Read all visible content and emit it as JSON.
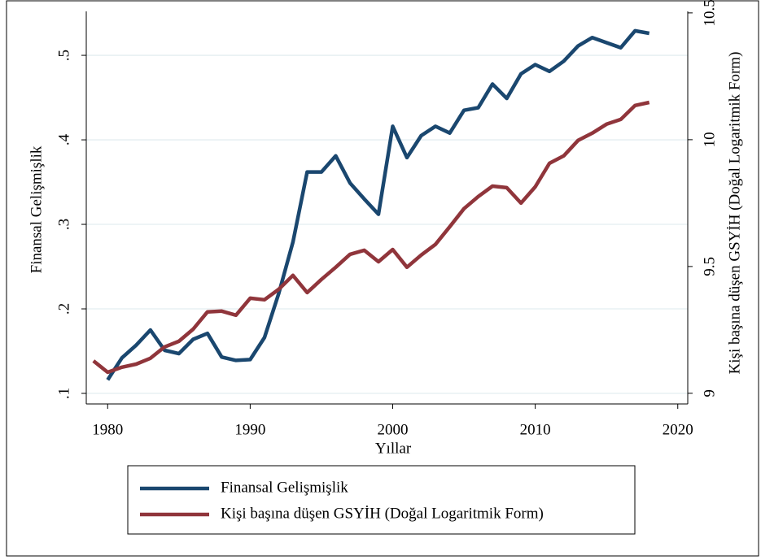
{
  "chart_data": {
    "type": "line",
    "xlabel": "Yıllar",
    "ylabel": "Finansal Gelişmişlik",
    "y2label": "Kişi başına düşen GSYİH (Doğal Logaritmik Form)",
    "x": [
      1979,
      1980,
      1981,
      1982,
      1983,
      1984,
      1985,
      1986,
      1987,
      1988,
      1989,
      1990,
      1991,
      1992,
      1993,
      1994,
      1995,
      1996,
      1997,
      1998,
      1999,
      2000,
      2001,
      2002,
      2003,
      2004,
      2005,
      2006,
      2007,
      2008,
      2009,
      2010,
      2011,
      2012,
      2013,
      2014,
      2015,
      2016,
      2017,
      2018
    ],
    "series": [
      {
        "name": "Finansal Gelişmişlik",
        "color": "#1a476f",
        "values": [
          null,
          0.116,
          0.142,
          0.157,
          0.175,
          0.151,
          0.147,
          0.164,
          0.171,
          0.143,
          0.139,
          0.14,
          0.166,
          0.218,
          0.279,
          0.362,
          0.362,
          0.381,
          0.349,
          0.33,
          0.312,
          0.416,
          0.379,
          0.405,
          0.416,
          0.408,
          0.435,
          0.438,
          0.466,
          0.449,
          0.478,
          0.489,
          0.481,
          0.493,
          0.511,
          0.521,
          0.515,
          0.509,
          0.529,
          0.526
        ]
      },
      {
        "name": "Kişi başına düşen GSYİH (Doğal Logaritmik Form)",
        "color": "#90353b",
        "axis": "y2",
        "values": [
          9.128,
          9.083,
          9.103,
          9.115,
          9.138,
          9.183,
          9.205,
          9.253,
          9.321,
          9.324,
          9.308,
          9.375,
          9.369,
          9.41,
          9.465,
          9.397,
          9.449,
          9.497,
          9.548,
          9.564,
          9.519,
          9.567,
          9.497,
          9.545,
          9.587,
          9.657,
          9.728,
          9.776,
          9.817,
          9.811,
          9.75,
          9.814,
          9.907,
          9.936,
          9.997,
          10.026,
          10.061,
          10.08,
          10.135,
          10.147
        ]
      }
    ],
    "xlim": [
      1978.5,
      2020.7
    ],
    "xticks": [
      1980,
      1990,
      2000,
      2010,
      2020
    ],
    "ylim": [
      0.0875,
      0.552
    ],
    "yticks": [
      {
        "value": 0.1,
        "label": ".1"
      },
      {
        "value": 0.2,
        "label": ".2"
      },
      {
        "value": 0.3,
        "label": ".3"
      },
      {
        "value": 0.4,
        "label": ".4"
      },
      {
        "value": 0.5,
        "label": ".5"
      }
    ],
    "y2lim": [
      8.958,
      10.506
    ],
    "y2ticks": [
      9,
      9.5,
      10,
      10.5
    ],
    "grid": true,
    "legend": "bottom"
  }
}
